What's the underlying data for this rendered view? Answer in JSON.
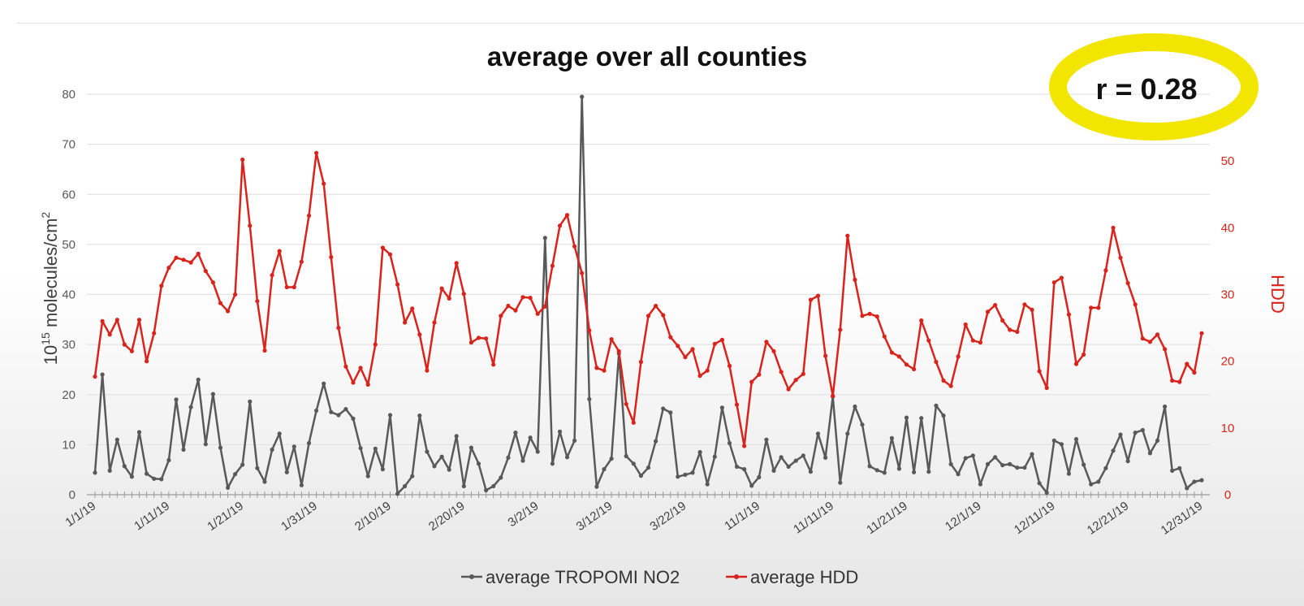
{
  "chart_data": {
    "type": "line",
    "title": "average over all counties",
    "ylabel_prefix": "10",
    "ylabel_exponent": "15",
    "ylabel_unit": " molecules/cm",
    "ylabel_unit_exponent": "2",
    "y2label": "HDD",
    "ylim": [
      0,
      80
    ],
    "y2lim": [
      0,
      60
    ],
    "yticks": [
      "0",
      "10",
      "20",
      "30",
      "40",
      "50",
      "60",
      "70",
      "80"
    ],
    "y2ticks": [
      "0",
      "10",
      "20",
      "30",
      "40",
      "50"
    ],
    "xticks": [
      "1/1/19",
      "1/11/19",
      "1/21/19",
      "1/31/19",
      "2/10/19",
      "2/20/19",
      "3/2/19",
      "3/12/19",
      "3/22/19",
      "11/1/19",
      "11/11/19",
      "11/21/19",
      "12/1/19",
      "12/11/19",
      "12/21/19",
      "12/31/19"
    ],
    "grid": true,
    "legend_position": "bottom",
    "annotation": "r = 0.28",
    "colors": {
      "no2": "#595959",
      "hdd": "#d9231b",
      "highlight": "#f2e600"
    },
    "series": [
      {
        "name": "average TROPOMI NO2",
        "axis": "left",
        "values": [
          4.4,
          24,
          4.8,
          11,
          5.7,
          3.6,
          12.5,
          4.2,
          3.2,
          3.1,
          6.9,
          19,
          9,
          17.5,
          23,
          10.1,
          20.1,
          9.4,
          1.4,
          4.1,
          6,
          18.6,
          5.3,
          2.6,
          9,
          12.2,
          4.5,
          9.6,
          1.9,
          10.3,
          16.8,
          22.2,
          16.5,
          15.9,
          17.1,
          15.2,
          9.3,
          3.7,
          9.2,
          5.1,
          15.9,
          0.2,
          1.7,
          3.7,
          15.8,
          8.6,
          5.7,
          7.6,
          5,
          11.7,
          1.7,
          9.4,
          6.2,
          0.9,
          1.7,
          3.4,
          7.4,
          12.4,
          6.8,
          11.4,
          8.6,
          51.3,
          6.2,
          12.6,
          7.5,
          10.8,
          79.5,
          19.1,
          1.6,
          5.1,
          7.2,
          28.2,
          7.7,
          6.2,
          3.8,
          5.4,
          10.7,
          17.2,
          16.4,
          3.6,
          4,
          4.4,
          8.5,
          2.1,
          7.6,
          17.4,
          10.3,
          5.6,
          5.1,
          1.8,
          3.5,
          11,
          4.8,
          7.5,
          5.6,
          6.8,
          7.8,
          4.6,
          12.2,
          7.4,
          19.6,
          2.4,
          12.2,
          17.6,
          14,
          5.7,
          4.9,
          4.4,
          11.3,
          5.2,
          15.4,
          4.5,
          15.3,
          4.6,
          17.8,
          15.8,
          6.1,
          4.1,
          7.3,
          7.8,
          2.1,
          6.1,
          7.5,
          5.9,
          6.1,
          5.4,
          5.4,
          8.1,
          2.3,
          0.4,
          10.8,
          10.1,
          4.2,
          11.1,
          6,
          2.1,
          2.6,
          5.3,
          8.8,
          12,
          6.7,
          12.4,
          12.9,
          8.3,
          10.8,
          17.6,
          4.8,
          5.3,
          1.3,
          2.6,
          2.9
        ]
      },
      {
        "name": "average HDD",
        "axis": "right",
        "values": [
          17.7,
          26,
          24,
          26.2,
          22.5,
          21.5,
          26.2,
          20,
          24.2,
          31.3,
          34,
          35.5,
          35.2,
          34.8,
          36.1,
          33.5,
          31.8,
          28.7,
          27.5,
          30,
          50.2,
          40.3,
          29,
          21.6,
          32.9,
          36.5,
          31.1,
          31.1,
          34.9,
          41.8,
          51.2,
          46.6,
          35.6,
          25,
          19.2,
          16.8,
          19,
          16.5,
          22.5,
          37,
          36,
          31.5,
          25.8,
          27.9,
          24,
          18.6,
          25.8,
          30.9,
          29.4,
          34.7,
          30.1,
          22.8,
          23.5,
          23.4,
          19.5,
          26.8,
          28.3,
          27.6,
          29.6,
          29.5,
          27.1,
          28.2,
          34.3,
          40.3,
          41.9,
          37.2,
          33.2,
          24.6,
          19,
          18.6,
          23.3,
          21.5,
          13.6,
          10.8,
          19.9,
          26.8,
          28.3,
          26.9,
          23.6,
          22.3,
          20.6,
          21.8,
          17.8,
          18.6,
          22.6,
          23.2,
          19.3,
          13.5,
          7.3,
          16.9,
          18,
          22.9,
          21.5,
          18.4,
          15.8,
          17.2,
          18.1,
          29.2,
          29.8,
          20.8,
          14.8,
          24.7,
          38.8,
          32.2,
          26.8,
          27.1,
          26.7,
          23.7,
          21.3,
          20.7,
          19.5,
          18.8,
          26.1,
          23.1,
          19.9,
          17.1,
          16.3,
          20.7,
          25.5,
          23.1,
          22.8,
          27.4,
          28.4,
          26.1,
          24.7,
          24.4,
          28.5,
          27.7,
          18.5,
          16,
          31.8,
          32.5,
          27,
          19.6,
          21,
          28,
          28,
          33.6,
          40,
          35.5,
          31.7,
          28.5,
          23.4,
          22.9,
          24,
          21.8,
          17.1,
          16.9,
          19.6,
          18.3,
          24.2
        ]
      }
    ]
  }
}
